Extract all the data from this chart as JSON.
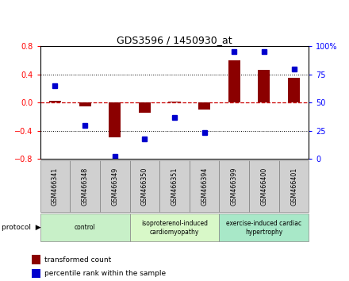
{
  "title": "GDS3596 / 1450930_at",
  "samples": [
    "GSM466341",
    "GSM466348",
    "GSM466349",
    "GSM466350",
    "GSM466351",
    "GSM466394",
    "GSM466399",
    "GSM466400",
    "GSM466401"
  ],
  "transformed_count": [
    0.02,
    -0.05,
    -0.5,
    -0.15,
    0.01,
    -0.1,
    0.6,
    0.47,
    0.35
  ],
  "percentile_rank": [
    65,
    30,
    2,
    18,
    37,
    23,
    95,
    95,
    80
  ],
  "ylim_left": [
    -0.8,
    0.8
  ],
  "ylim_right": [
    0,
    100
  ],
  "yticks_left": [
    -0.8,
    -0.4,
    0.0,
    0.4,
    0.8
  ],
  "yticks_right": [
    0,
    25,
    50,
    75,
    100
  ],
  "ytick_labels_right": [
    "0",
    "25",
    "50",
    "75",
    "100%"
  ],
  "bar_color": "#8B0000",
  "dot_color": "#0000CD",
  "zero_line_color": "#CC0000",
  "grid_color": "#000000",
  "groups": [
    {
      "label": "control",
      "start": 0,
      "end": 3,
      "color": "#c8f0c8"
    },
    {
      "label": "isoproterenol-induced\ncardiomyopathy",
      "start": 3,
      "end": 6,
      "color": "#d8f8c8"
    },
    {
      "label": "exercise-induced cardiac\nhypertrophy",
      "start": 6,
      "end": 9,
      "color": "#a8e8c8"
    }
  ],
  "protocol_label": "protocol",
  "legend_items": [
    {
      "label": "transformed count",
      "color": "#8B0000"
    },
    {
      "label": "percentile rank within the sample",
      "color": "#0000CD"
    }
  ],
  "bg_color": "#f0f0f0",
  "sample_box_color": "#d0d0d0"
}
